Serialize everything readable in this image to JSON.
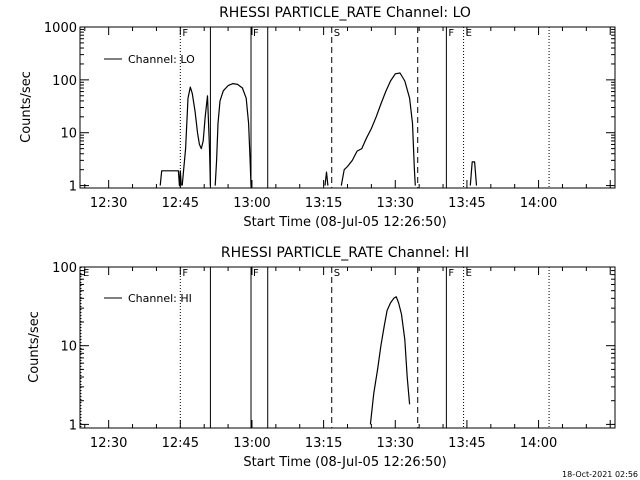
{
  "footer": {
    "timestamp": "18-Oct-2021 02:56"
  },
  "chart_data": [
    {
      "type": "line",
      "title": "RHESSI PARTICLE_RATE Channel: LO",
      "xlabel": "Start Time (08-Jul-05 12:26:50)",
      "ylabel": "Counts/sec",
      "yscale": "log",
      "xlim": [
        "12:24",
        "14:16"
      ],
      "ylim": [
        0.9,
        1000
      ],
      "x_ticks": [
        "12:30",
        "12:45",
        "13:00",
        "13:15",
        "13:30",
        "13:45",
        "14:00"
      ],
      "y_ticks": [
        "1",
        "10",
        "100",
        "1000"
      ],
      "legend": {
        "label": "Channel: LO",
        "placement": "top-left"
      },
      "markers": [
        {
          "time": "12:45.0",
          "style": "dotted",
          "label": "F"
        },
        {
          "time": "12:51.3",
          "style": "solid",
          "label": ""
        },
        {
          "time": "12:59.8",
          "style": "solid",
          "label": "F"
        },
        {
          "time": "13:03.3",
          "style": "solid",
          "label": ""
        },
        {
          "time": "13:16.7",
          "style": "dashed",
          "label": "S"
        },
        {
          "time": "13:34.7",
          "style": "dashed",
          "label": ""
        },
        {
          "time": "13:40.7",
          "style": "solid",
          "label": "F"
        },
        {
          "time": "13:44.3",
          "style": "dotted",
          "label": "E"
        },
        {
          "time": "14:02.2",
          "style": "dotted",
          "label": ""
        }
      ],
      "series": [
        {
          "segments": [
            [
              [
                "12:40.8",
                1
              ],
              [
                "12:41.1",
                1.9
              ],
              [
                "12:44.6",
                1.9
              ],
              [
                "12:44.8",
                1
              ],
              [
                "12:45.0",
                1.9
              ],
              [
                "12:45.2",
                1
              ]
            ],
            [
              [
                "12:45.4",
                1
              ],
              [
                "12:46.1",
                5
              ],
              [
                "12:46.6",
                45
              ],
              [
                "12:47.1",
                73
              ],
              [
                "12:47.5",
                55
              ],
              [
                "12:48.1",
                25
              ],
              [
                "12:48.6",
                10
              ],
              [
                "12:49.0",
                6
              ],
              [
                "12:49.4",
                5
              ],
              [
                "12:49.8",
                7
              ],
              [
                "12:50.2",
                20
              ],
              [
                "12:50.7",
                50
              ],
              [
                "12:51.1",
                5
              ],
              [
                "12:51.3",
                1
              ]
            ],
            [
              [
                "12:52.3",
                1
              ],
              [
                "12:52.6",
                3
              ],
              [
                "12:52.9",
                15
              ],
              [
                "12:53.3",
                40
              ],
              [
                "12:54.0",
                62
              ],
              [
                "12:55.0",
                78
              ],
              [
                "12:56.0",
                85
              ],
              [
                "12:57.0",
                82
              ],
              [
                "12:58.0",
                70
              ],
              [
                "12:58.8",
                45
              ],
              [
                "12:59.3",
                15
              ],
              [
                "12:59.6",
                3
              ],
              [
                "12:59.8",
                1
              ]
            ],
            [
              [
                "13:15.3",
                1
              ],
              [
                "13:15.6",
                1.8
              ],
              [
                "13:15.9",
                1
              ]
            ],
            [
              [
                "13:18.7",
                1
              ],
              [
                "13:19.3",
                2
              ],
              [
                "13:20.0",
                2.3
              ],
              [
                "13:21.0",
                3
              ],
              [
                "13:22.0",
                4.5
              ],
              [
                "13:23.0",
                5
              ],
              [
                "13:24.0",
                8
              ],
              [
                "13:25.0",
                12
              ],
              [
                "13:26.0",
                20
              ],
              [
                "13:27.0",
                35
              ],
              [
                "13:28.0",
                60
              ],
              [
                "13:29.0",
                95
              ],
              [
                "13:30.0",
                130
              ],
              [
                "13:31.0",
                135
              ],
              [
                "13:32.0",
                95
              ],
              [
                "13:33.0",
                45
              ],
              [
                "13:33.6",
                15
              ],
              [
                "13:34.0",
                2
              ],
              [
                "13:34.2",
                1
              ]
            ],
            [
              [
                "13:45.7",
                1
              ],
              [
                "13:46.1",
                2.8
              ],
              [
                "13:46.6",
                2.8
              ],
              [
                "13:47.0",
                1
              ]
            ]
          ]
        }
      ]
    },
    {
      "type": "line",
      "title": "RHESSI PARTICLE_RATE Channel: HI",
      "xlabel": "Start Time (08-Jul-05 12:26:50)",
      "ylabel": "Counts/sec",
      "yscale": "log",
      "xlim": [
        "12:24",
        "14:16"
      ],
      "ylim": [
        0.9,
        100
      ],
      "x_ticks": [
        "12:30",
        "12:45",
        "13:00",
        "13:15",
        "13:30",
        "13:45",
        "14:00"
      ],
      "y_ticks": [
        "1",
        "10",
        "100"
      ],
      "legend": {
        "label": "Channel: HI",
        "placement": "top-left"
      },
      "markers": [
        {
          "time": "12:24.2",
          "style": "dotted",
          "label": "E"
        },
        {
          "time": "12:45.0",
          "style": "dotted",
          "label": "F"
        },
        {
          "time": "12:51.3",
          "style": "solid",
          "label": ""
        },
        {
          "time": "12:59.8",
          "style": "solid",
          "label": "F"
        },
        {
          "time": "13:03.3",
          "style": "solid",
          "label": ""
        },
        {
          "time": "13:16.7",
          "style": "dashed",
          "label": "S"
        },
        {
          "time": "13:34.7",
          "style": "dashed",
          "label": ""
        },
        {
          "time": "13:40.7",
          "style": "solid",
          "label": "F"
        },
        {
          "time": "13:44.3",
          "style": "dotted",
          "label": "E"
        },
        {
          "time": "14:02.2",
          "style": "dotted",
          "label": ""
        }
      ],
      "series": [
        {
          "segments": [
            [
              [
                "13:24.8",
                1
              ],
              [
                "13:25.5",
                2.5
              ],
              [
                "13:26.3",
                5
              ],
              [
                "13:27.0",
                10
              ],
              [
                "13:27.7",
                18
              ],
              [
                "13:28.3",
                28
              ],
              [
                "13:29.0",
                35
              ],
              [
                "13:29.7",
                40
              ],
              [
                "13:30.2",
                42
              ],
              [
                "13:30.7",
                35
              ],
              [
                "13:31.3",
                25
              ],
              [
                "13:32.0",
                12
              ],
              [
                "13:32.5",
                4
              ],
              [
                "13:33.0",
                1.8
              ]
            ]
          ]
        }
      ]
    }
  ]
}
